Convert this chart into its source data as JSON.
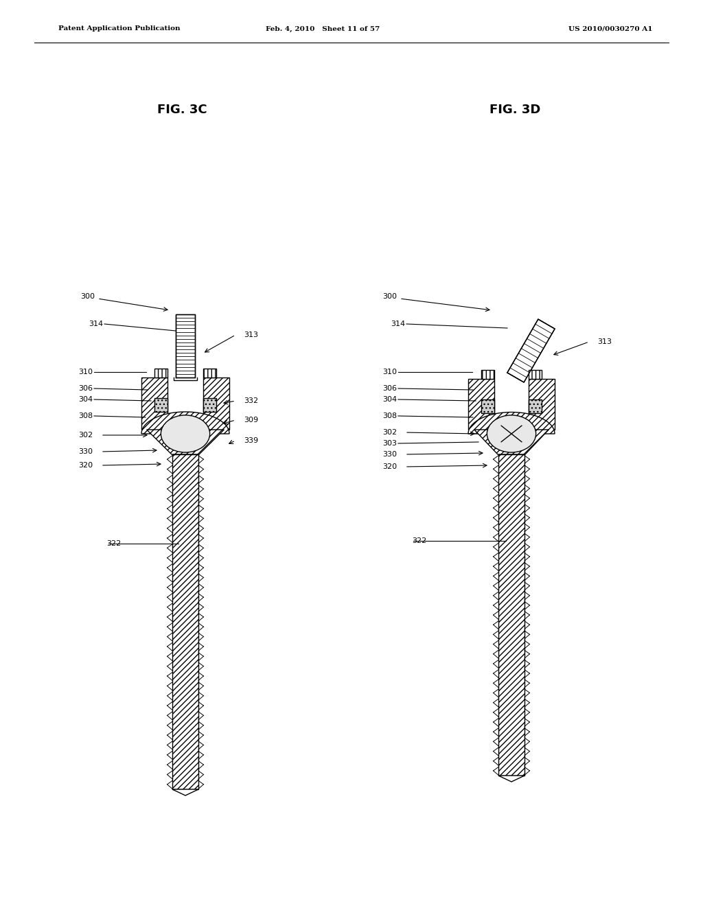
{
  "header_left": "Patent Application Publication",
  "header_mid": "Feb. 4, 2010   Sheet 11 of 57",
  "header_right": "US 2010/0030270 A1",
  "fig3c_title": "FIG. 3C",
  "fig3d_title": "FIG. 3D",
  "bg_color": "#ffffff",
  "line_color": "#000000"
}
